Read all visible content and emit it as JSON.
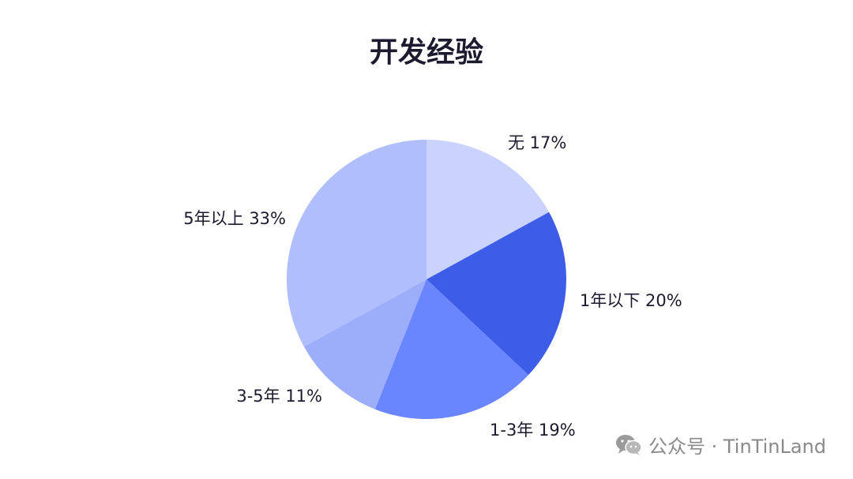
{
  "chart_data": {
    "type": "pie",
    "title": "开发经验",
    "categories": [
      "无",
      "1年以下",
      "1-3年",
      "3-5年",
      "5年以上"
    ],
    "values": [
      17,
      20,
      19,
      11,
      33
    ],
    "labels": [
      "无 17%",
      "1年以下 20%",
      "1-3年 19%",
      "3-5年 11%",
      "5年以上 33%"
    ],
    "colors": [
      "#c9d3fd",
      "#3d5ce8",
      "#6a86ff",
      "#9caefa",
      "#b0befd"
    ],
    "start_angle_deg": 0,
    "direction": "clockwise"
  },
  "watermark": {
    "icon": "wechat-icon",
    "text": "公众号 · TinTinLand"
  }
}
